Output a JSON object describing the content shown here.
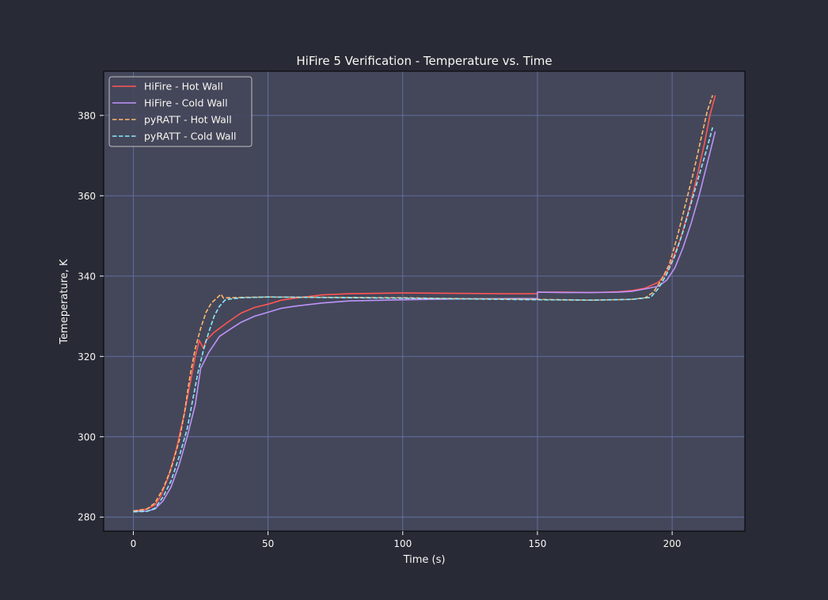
{
  "colors": {
    "figure_bg": "#282a36",
    "axes_bg": "#44475a",
    "grid": "#6272a4",
    "text": "#f8f8f2",
    "legend_bg": "#44475a",
    "legend_edge": "#bfbfbf"
  },
  "chart_data": {
    "type": "line",
    "title": "HiFire 5 Verification - Temperature vs. Time",
    "xlabel": "Time (s)",
    "ylabel": "Temeperature, K",
    "xlim": [
      -11,
      227
    ],
    "ylim": [
      276.5,
      391
    ],
    "xticks": [
      0,
      50,
      100,
      150,
      200
    ],
    "yticks": [
      280,
      300,
      320,
      340,
      360,
      380
    ],
    "grid": true,
    "legend_position": "top-left",
    "series": [
      {
        "name": "HiFire - Hot Wall",
        "color": "#ff5555",
        "dash": "solid",
        "points": [
          [
            0,
            281.5
          ],
          [
            5,
            282
          ],
          [
            8,
            283
          ],
          [
            10,
            285
          ],
          [
            13,
            290
          ],
          [
            16,
            297
          ],
          [
            19,
            306
          ],
          [
            21,
            313
          ],
          [
            23,
            320
          ],
          [
            24.5,
            324
          ],
          [
            26,
            322
          ],
          [
            27,
            324
          ],
          [
            30,
            326
          ],
          [
            35,
            328.5
          ],
          [
            40,
            330.8
          ],
          [
            45,
            332.2
          ],
          [
            50,
            333
          ],
          [
            55,
            334
          ],
          [
            60,
            334.5
          ],
          [
            70,
            335.3
          ],
          [
            80,
            335.6
          ],
          [
            100,
            335.8
          ],
          [
            120,
            335.7
          ],
          [
            140,
            335.6
          ],
          [
            150,
            335.6
          ],
          [
            150,
            336
          ],
          [
            160,
            336
          ],
          [
            170,
            335.9
          ],
          [
            180,
            336.1
          ],
          [
            185,
            336.4
          ],
          [
            190,
            337
          ],
          [
            195,
            338.5
          ],
          [
            198,
            341
          ],
          [
            200,
            344
          ],
          [
            203,
            349
          ],
          [
            206,
            356
          ],
          [
            209,
            364
          ],
          [
            212,
            373
          ],
          [
            214,
            380
          ],
          [
            216,
            385
          ]
        ]
      },
      {
        "name": "HiFire - Cold Wall",
        "color": "#bd93f9",
        "dash": "solid",
        "points": [
          [
            0,
            281.4
          ],
          [
            5,
            281.5
          ],
          [
            8,
            282
          ],
          [
            11,
            284
          ],
          [
            14,
            287.5
          ],
          [
            17,
            293
          ],
          [
            20,
            300
          ],
          [
            23,
            308
          ],
          [
            25,
            317
          ],
          [
            28,
            321
          ],
          [
            32,
            325
          ],
          [
            36,
            326.8
          ],
          [
            40,
            328.5
          ],
          [
            45,
            330
          ],
          [
            50,
            331
          ],
          [
            55,
            332
          ],
          [
            60,
            332.5
          ],
          [
            70,
            333.3
          ],
          [
            80,
            333.8
          ],
          [
            100,
            334.1
          ],
          [
            120,
            334.3
          ],
          [
            140,
            334.4
          ],
          [
            150,
            334.4
          ],
          [
            150,
            336
          ],
          [
            160,
            335.9
          ],
          [
            170,
            335.9
          ],
          [
            180,
            336
          ],
          [
            185,
            336.2
          ],
          [
            190,
            336.8
          ],
          [
            195,
            337.5
          ],
          [
            198,
            339
          ],
          [
            201,
            342
          ],
          [
            204,
            347
          ],
          [
            207,
            353
          ],
          [
            210,
            360
          ],
          [
            213,
            368
          ],
          [
            216,
            376
          ]
        ]
      },
      {
        "name": "pyRATT - Hot Wall",
        "color": "#ffb86c",
        "dash": "dashed",
        "points": [
          [
            0,
            281.5
          ],
          [
            5,
            282
          ],
          [
            8,
            283.5
          ],
          [
            11,
            287
          ],
          [
            14,
            292
          ],
          [
            17,
            299
          ],
          [
            19,
            306
          ],
          [
            21,
            315
          ],
          [
            23,
            322
          ],
          [
            25,
            327
          ],
          [
            27,
            331
          ],
          [
            29,
            333.3
          ],
          [
            31,
            334.5
          ],
          [
            32.5,
            335.5
          ],
          [
            33.5,
            334.5
          ],
          [
            35,
            334.6
          ],
          [
            40,
            334.7
          ],
          [
            50,
            334.8
          ],
          [
            100,
            334.6
          ],
          [
            120,
            334.4
          ],
          [
            150,
            334.2
          ],
          [
            170,
            334
          ],
          [
            185,
            334.2
          ],
          [
            190,
            334.6
          ],
          [
            193,
            336
          ],
          [
            196,
            339
          ],
          [
            199,
            343
          ],
          [
            202,
            350
          ],
          [
            205,
            358
          ],
          [
            208,
            366
          ],
          [
            211,
            375
          ],
          [
            213,
            381
          ],
          [
            215,
            385
          ]
        ]
      },
      {
        "name": "pyRATT - Cold Wall",
        "color": "#8be9fd",
        "dash": "dashed",
        "points": [
          [
            0,
            281.3
          ],
          [
            5,
            281.4
          ],
          [
            8,
            282.2
          ],
          [
            11,
            285
          ],
          [
            14,
            289
          ],
          [
            17,
            295
          ],
          [
            20,
            302
          ],
          [
            22,
            309
          ],
          [
            24,
            316
          ],
          [
            26,
            321.5
          ],
          [
            28,
            326
          ],
          [
            30,
            330
          ],
          [
            32,
            332.5
          ],
          [
            34,
            334
          ],
          [
            36,
            334.3
          ],
          [
            40,
            334.6
          ],
          [
            50,
            334.8
          ],
          [
            100,
            334.5
          ],
          [
            150,
            334.1
          ],
          [
            170,
            334
          ],
          [
            185,
            334.2
          ],
          [
            192,
            334.7
          ],
          [
            195,
            337
          ],
          [
            198,
            340.5
          ],
          [
            201,
            345
          ],
          [
            204,
            351
          ],
          [
            207,
            358
          ],
          [
            210,
            365
          ],
          [
            213,
            372
          ],
          [
            215,
            377
          ]
        ]
      }
    ]
  }
}
